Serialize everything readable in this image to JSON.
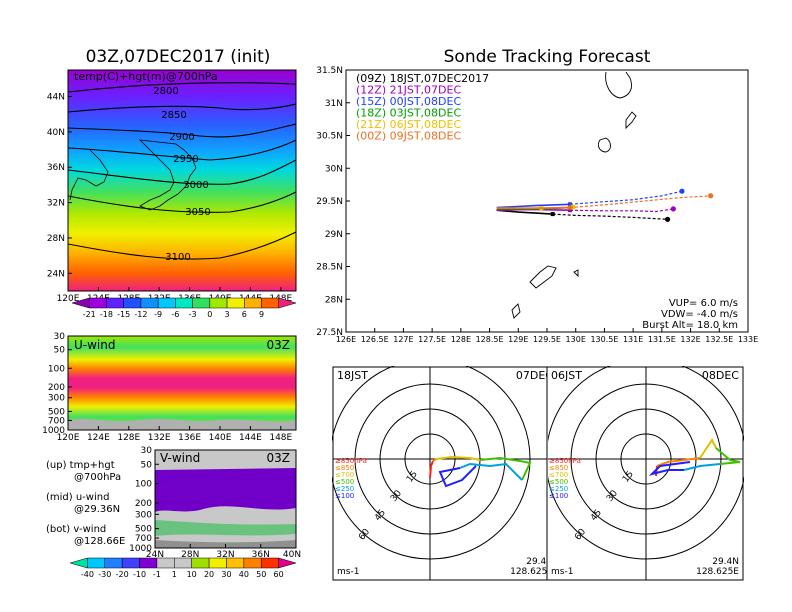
{
  "panels": {
    "map_title": "03Z,07DEC2017 (init)",
    "map_field_label": "temp(C)+hgt(m)@700hPa",
    "track_title": "Sonde Tracking Forecast",
    "uwind_label": "U-wind",
    "uwind_time": "03Z",
    "vwind_label": "V-wind",
    "vwind_time": "03Z",
    "legend_lines": [
      {
        "id": "up",
        "line1": "(up) tmp+hgt",
        "line2": "@700hPa"
      },
      {
        "id": "mid",
        "line1": "(mid) u-wind",
        "line2": "@29.36N"
      },
      {
        "id": "bot",
        "line1": "(bot) v-wind",
        "line2": "@128.66E"
      }
    ]
  },
  "chart_data": [
    {
      "type": "heatmap",
      "name": "temperature-height-map",
      "title": "03Z,07DEC2017 (init)",
      "field_label": "temp(C)+hgt(m)@700hPa",
      "x_ticks": [
        "120E",
        "124E",
        "128E",
        "132E",
        "136E",
        "140E",
        "144E",
        "148E"
      ],
      "y_ticks": [
        "24N",
        "28N",
        "32N",
        "36N",
        "40N",
        "44N"
      ],
      "xlim": [
        120,
        150
      ],
      "ylim": [
        22,
        47
      ],
      "contours": [
        {
          "label": "2800",
          "value": 2800
        },
        {
          "label": "2850",
          "value": 2850
        },
        {
          "label": "2900",
          "value": 2900
        },
        {
          "label": "2950",
          "value": 2950
        },
        {
          "label": "3000",
          "value": 3000
        },
        {
          "label": "3050",
          "value": 3050
        },
        {
          "label": "3100",
          "value": 3100
        }
      ],
      "colorbar_labels": [
        "-21",
        "-18",
        "-15",
        "-12",
        "-9",
        "-6",
        "-3",
        "0",
        "3",
        "6",
        "9"
      ],
      "colorbar_colors": [
        "#8a00b0",
        "#a000e0",
        "#6020ff",
        "#2050ff",
        "#1090ff",
        "#00c8ff",
        "#00e8c0",
        "#30e060",
        "#a0e800",
        "#f0f000",
        "#ffb000",
        "#ff6000",
        "#f02080"
      ]
    },
    {
      "type": "line",
      "name": "sonde-track-forecast",
      "title": "Sonde Tracking Forecast",
      "xlim": [
        126,
        133
      ],
      "ylim": [
        27.5,
        31.5
      ],
      "x_ticks": [
        "126E",
        "126.5E",
        "127E",
        "127.5E",
        "128E",
        "128.5E",
        "129E",
        "129.5E",
        "130E",
        "130.5E",
        "131E",
        "131.5E",
        "132E",
        "132.5E",
        "133E"
      ],
      "y_ticks": [
        "27.5N",
        "28N",
        "28.5N",
        "29N",
        "29.5N",
        "30N",
        "30.5N",
        "31N",
        "31.5N"
      ],
      "series": [
        {
          "name": "(09Z)  18JST,07DEC2017",
          "color": "#000000",
          "x": [
            128.62,
            129.0,
            129.6,
            130.0,
            130.5,
            131.0,
            131.6
          ],
          "y": [
            29.36,
            29.33,
            29.3,
            29.28,
            29.27,
            29.25,
            29.22
          ]
        },
        {
          "name": "(12Z)  21JST,07DEC",
          "color": "#a000c0",
          "x": [
            128.62,
            129.2,
            129.9,
            130.5,
            131.0,
            131.4,
            131.7
          ],
          "y": [
            29.36,
            29.37,
            29.36,
            29.35,
            29.35,
            29.34,
            29.38
          ]
        },
        {
          "name": "(15Z)  00JST,08DEC",
          "color": "#2040ff",
          "x": [
            128.62,
            129.3,
            129.9,
            130.5,
            131.0,
            131.5,
            131.85
          ],
          "y": [
            29.4,
            29.43,
            29.45,
            29.49,
            29.52,
            29.58,
            29.65
          ]
        },
        {
          "name": "(18Z)  03JST,08DEC",
          "color": "#00a000",
          "x": [
            128.62,
            129.4,
            129.9
          ],
          "y": [
            29.38,
            29.38,
            29.4
          ]
        },
        {
          "name": "(21Z)  06JST,08DEC",
          "color": "#f0c000",
          "x": [
            128.62,
            129.4,
            129.95
          ],
          "y": [
            29.39,
            29.39,
            29.41
          ]
        },
        {
          "name": "(00Z)  09JST,08DEC",
          "color": "#f07020",
          "x": [
            128.62,
            129.3,
            129.9,
            130.6,
            131.2,
            131.8,
            132.35
          ],
          "y": [
            29.39,
            29.39,
            29.4,
            29.45,
            29.5,
            29.55,
            29.58
          ]
        }
      ],
      "params": [
        "VUP=  6.0  m/s",
        "VDW=  -4.0  m/s",
        "Burst Alt=  18.0  km"
      ]
    },
    {
      "type": "heatmap",
      "name": "u-wind-cross-section",
      "title": "U-wind",
      "time": "03Z",
      "x_ticks": [
        "120E",
        "124E",
        "128E",
        "132E",
        "136E",
        "140E",
        "144E",
        "148E"
      ],
      "y_ticks": [
        "30",
        "50",
        "100",
        "200",
        "300",
        "500",
        "700",
        "1000"
      ],
      "ylabel": ""
    },
    {
      "type": "heatmap",
      "name": "v-wind-cross-section",
      "title": "V-wind",
      "time": "03Z",
      "x_ticks": [
        "24N",
        "28N",
        "32N",
        "36N",
        "40N"
      ],
      "y_ticks": [
        "30",
        "50",
        "100",
        "200",
        "300",
        "500",
        "700",
        "1000"
      ],
      "colorbar_labels": [
        "-40",
        "-30",
        "-20",
        "-10",
        "-1",
        "1",
        "10",
        "20",
        "30",
        "40",
        "50",
        "60"
      ],
      "colorbar_colors": [
        "#00e0a0",
        "#00c8ff",
        "#2080ff",
        "#4040ff",
        "#8000d0",
        "#c8c8c8",
        "#c8c8c8",
        "#a0e000",
        "#f0f000",
        "#ffc000",
        "#ff8000",
        "#ff3000",
        "#e00090"
      ]
    },
    {
      "type": "scatter",
      "name": "hodograph-18jst",
      "label_left": "18JST",
      "label_right": "07DEC",
      "lat": "29.4N",
      "lon": "128.625E",
      "unit": "ms-1",
      "ring_labels": [
        "15",
        "30",
        "45",
        "60"
      ],
      "levels": [
        {
          "label": "≥850hPa",
          "color": "#ff2020"
        },
        {
          "label": "≤850",
          "color": "#ff8000"
        },
        {
          "label": "≤700",
          "color": "#e0c000"
        },
        {
          "label": "≤500",
          "color": "#40c000"
        },
        {
          "label": "≤250",
          "color": "#00a0e0"
        },
        {
          "label": "≤100",
          "color": "#2020ff"
        }
      ]
    },
    {
      "type": "scatter",
      "name": "hodograph-06jst",
      "label_left": "06JST",
      "label_right": "08DEC",
      "lat": "29.4N",
      "lon": "128.625E",
      "unit": "ms-1",
      "ring_labels": [
        "15",
        "30",
        "45",
        "60"
      ],
      "levels": [
        {
          "label": "≥850hPa",
          "color": "#ff2020"
        },
        {
          "label": "≤850",
          "color": "#ff8000"
        },
        {
          "label": "≤700",
          "color": "#e0c000"
        },
        {
          "label": "≤500",
          "color": "#40c000"
        },
        {
          "label": "≤250",
          "color": "#00a0e0"
        },
        {
          "label": "≤100",
          "color": "#2020ff"
        }
      ]
    }
  ]
}
